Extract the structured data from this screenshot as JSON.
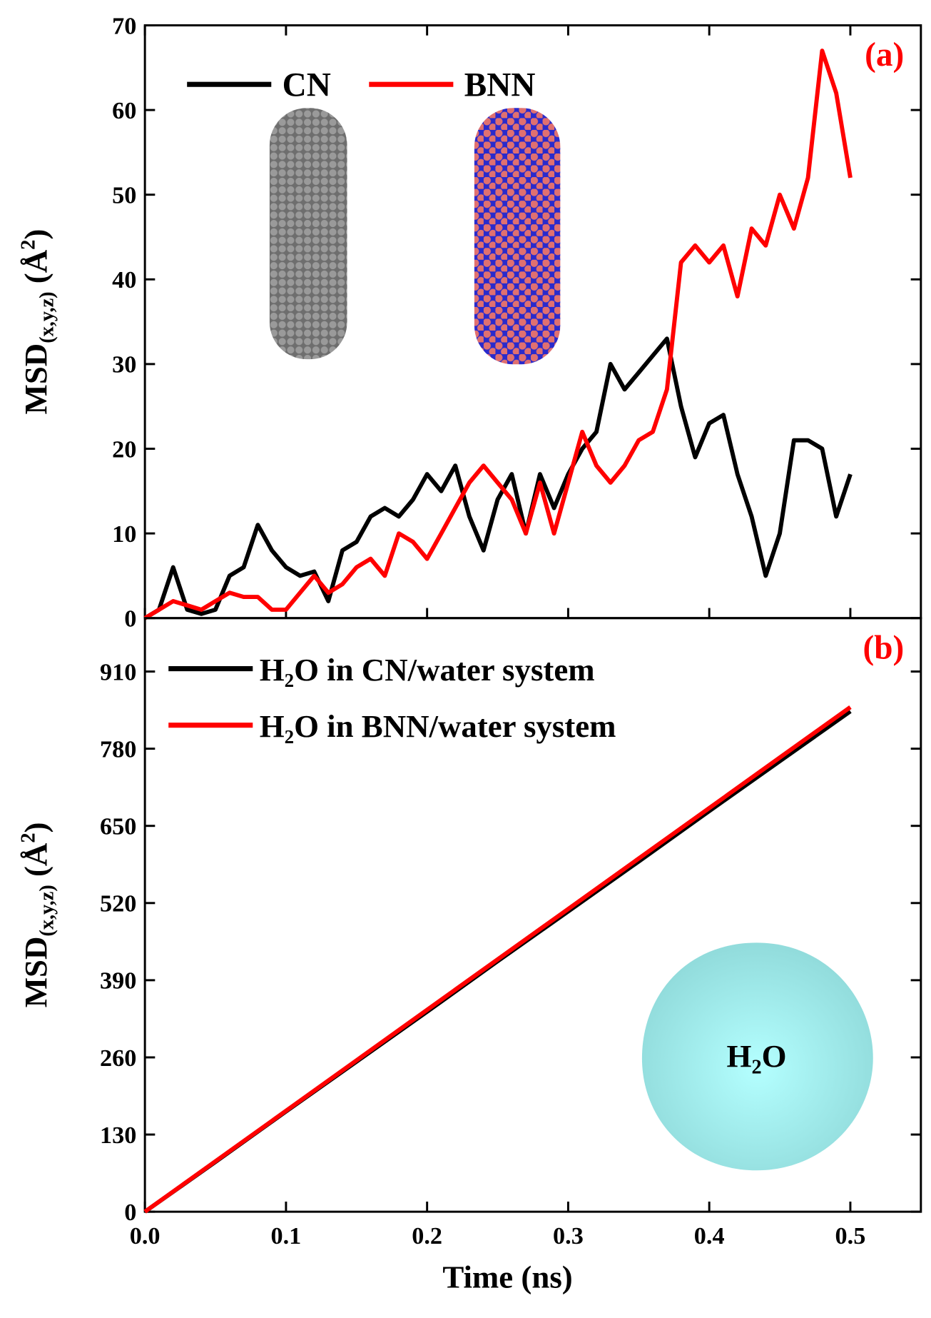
{
  "chart_data": [
    {
      "type": "line",
      "panel_label": "(a)",
      "y_label": [
        "MSD",
        "(x,y,z)",
        " (Å",
        "2",
        ")"
      ],
      "x": [
        0,
        0.01,
        0.02,
        0.03,
        0.04,
        0.05,
        0.06,
        0.07,
        0.08,
        0.09,
        0.1,
        0.11,
        0.12,
        0.13,
        0.14,
        0.15,
        0.16,
        0.17,
        0.18,
        0.19,
        0.2,
        0.21,
        0.22,
        0.23,
        0.24,
        0.25,
        0.26,
        0.27,
        0.28,
        0.29,
        0.3,
        0.31,
        0.32,
        0.33,
        0.34,
        0.35,
        0.36,
        0.37,
        0.38,
        0.39,
        0.4,
        0.41,
        0.42,
        0.43,
        0.44,
        0.45,
        0.46,
        0.47,
        0.48,
        0.49,
        0.5
      ],
      "series": [
        {
          "name": "CN",
          "color": "#000000",
          "values": [
            0,
            1,
            6,
            1,
            0.5,
            1,
            5,
            6,
            11,
            8,
            6,
            5,
            5.5,
            2,
            8,
            9,
            12,
            13,
            12,
            14,
            17,
            15,
            18,
            12,
            8,
            14,
            17,
            10,
            17,
            13,
            17,
            20,
            22,
            30,
            27,
            29,
            31,
            33,
            25,
            19,
            23,
            24,
            17,
            12,
            5,
            10,
            21,
            21,
            20,
            12,
            17
          ]
        },
        {
          "name": "BNN",
          "color": "#ff0000",
          "values": [
            0,
            1,
            2,
            1.5,
            1,
            2,
            3,
            2.5,
            2.5,
            1,
            1,
            3,
            5,
            3,
            4,
            6,
            7,
            5,
            10,
            9,
            7,
            10,
            13,
            16,
            18,
            16,
            14,
            10,
            16,
            10,
            16,
            22,
            18,
            16,
            18,
            21,
            22,
            27,
            42,
            44,
            42,
            44,
            38,
            46,
            44,
            50,
            46,
            52,
            67,
            62,
            52
          ]
        }
      ],
      "xlim": [
        0,
        0.55
      ],
      "xticks": [
        0,
        0.1,
        0.2,
        0.3,
        0.4,
        0.5
      ],
      "ylim": [
        0,
        70
      ],
      "yticks": [
        0,
        10,
        20,
        30,
        40,
        50,
        60,
        70
      ]
    },
    {
      "type": "line",
      "panel_label": "(b)",
      "y_label": [
        "MSD",
        "(x,y,z)",
        " (Å",
        "2",
        ")"
      ],
      "x_label": "Time (ns)",
      "inset_label": [
        "H",
        "2",
        "O"
      ],
      "x": [
        0,
        0.05,
        0.1,
        0.15,
        0.2,
        0.25,
        0.3,
        0.35,
        0.4,
        0.45,
        0.5
      ],
      "series": [
        {
          "name": "H₂O in CN/water  system",
          "color": "#000000",
          "values": [
            0,
            84,
            169,
            253,
            337,
            422,
            506,
            590,
            675,
            759,
            843
          ]
        },
        {
          "name": "H₂O in BNN/water system",
          "color": "#ff0000",
          "values": [
            0,
            85,
            170,
            255,
            340,
            425,
            510,
            595,
            680,
            765,
            850
          ]
        }
      ],
      "xlim": [
        0,
        0.55
      ],
      "xticks": [
        {
          "value": 0,
          "label": "0.0"
        },
        0.1,
        0.2,
        0.3,
        0.4,
        0.5
      ],
      "ylim": [
        0,
        1000
      ],
      "yticks": [
        0,
        130,
        260,
        390,
        520,
        650,
        780,
        910
      ]
    }
  ]
}
